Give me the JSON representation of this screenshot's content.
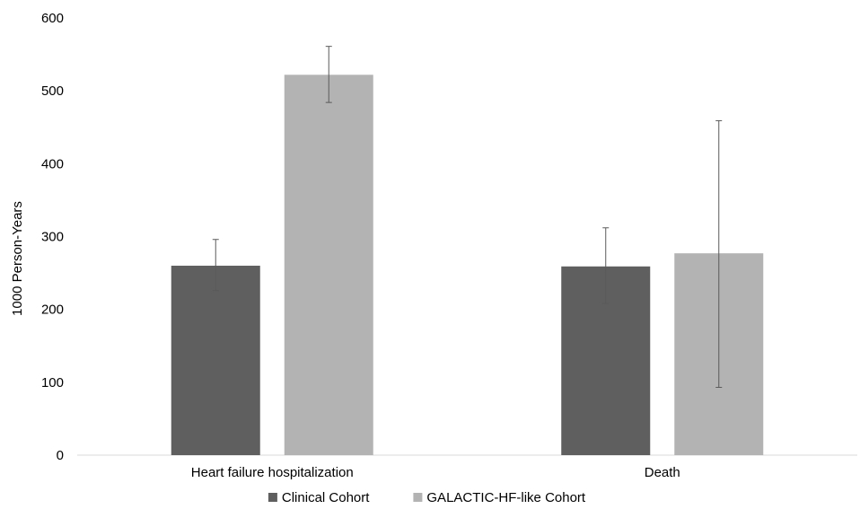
{
  "chart_data": {
    "type": "bar",
    "title": "",
    "xlabel": "",
    "ylabel": "1000 Person-Years",
    "ylim": [
      0,
      600
    ],
    "yticks": [
      0,
      100,
      200,
      300,
      400,
      500,
      600
    ],
    "grid": false,
    "legend_position": "bottom",
    "categories": [
      "Heart failure hospitalization",
      "Death"
    ],
    "series": [
      {
        "name": "Clinical Cohort",
        "color": "#5f5f5f",
        "values": [
          260,
          259
        ],
        "error_low": [
          226,
          208
        ],
        "error_high": [
          296,
          312
        ]
      },
      {
        "name": "GALACTIC-HF-like Cohort",
        "color": "#b3b3b3",
        "values": [
          522,
          277
        ],
        "error_low": [
          484,
          93
        ],
        "error_high": [
          561,
          459
        ]
      }
    ]
  }
}
